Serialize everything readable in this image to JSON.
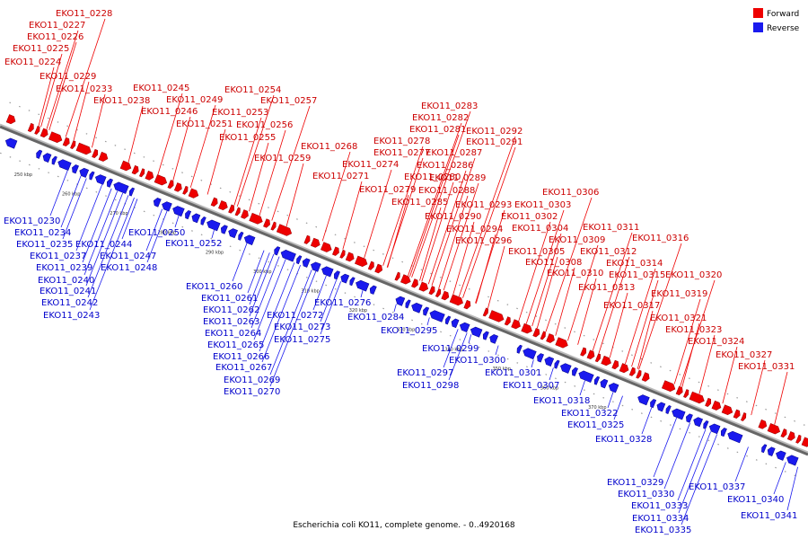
{
  "title": "Escherichia coli KO11, complete genome. - 0..4920168",
  "colors": {
    "forward": "#ee0000",
    "reverse": "#1a1aee",
    "backbone": "#666666"
  },
  "legend": [
    {
      "label": "Forward",
      "strand": "forward"
    },
    {
      "label": "Reverse",
      "strand": "reverse"
    }
  ],
  "ticks": [
    "250 kbp",
    "260 kbp",
    "270 kbp",
    "280 kbp",
    "290 kbp",
    "300 kbp",
    "310 kbp",
    "320 kbp",
    "330 kbp",
    "340 kbp",
    "350 kbp",
    "360 kbp",
    "370 kbp"
  ],
  "forward_labels": [
    "EKO11_0228",
    "EKO11_0227",
    "EKO11_0226",
    "EKO11_0225",
    "EKO11_0224",
    "EKO11_0229",
    "EKO11_0233",
    "EKO11_0238",
    "EKO11_0245",
    "EKO11_0249",
    "EKO11_0246",
    "EKO11_0254",
    "EKO11_0257",
    "EKO11_0253",
    "EKO11_0251",
    "EKO11_0256",
    "EKO11_0255",
    "EKO11_0268",
    "EKO11_0259",
    "EKO11_0271",
    "EKO11_0283",
    "EKO11_0282",
    "EKO11_0281",
    "EKO11_0278",
    "EKO11_0277",
    "EKO11_0274",
    "EKO11_0280",
    "EKO11_0279",
    "EKO11_0285",
    "EKO11_0292",
    "EKO11_0291",
    "EKO11_0287",
    "EKO11_0286",
    "EKO11_0289",
    "EKO11_0288",
    "EKO11_0293",
    "EKO11_0290",
    "EKO11_0294",
    "EKO11_0296",
    "EKO11_0306",
    "EKO11_0303",
    "EKO11_0302",
    "EKO11_0304",
    "EKO11_0311",
    "EKO11_0309",
    "EKO11_0316",
    "EKO11_0305",
    "EKO11_0312",
    "EKO11_0308",
    "EKO11_0314",
    "EKO11_0310",
    "EKO11_0315",
    "EKO11_0320",
    "EKO11_0313",
    "EKO11_0319",
    "EKO11_0317",
    "EKO11_0321",
    "EKO11_0323",
    "EKO11_0324",
    "EKO11_0327",
    "EKO11_0331"
  ],
  "reverse_labels": [
    "EKO11_0230",
    "EKO11_0234",
    "EKO11_0235",
    "EKO11_0244",
    "EKO11_0250",
    "EKO11_0237",
    "EKO11_0247",
    "EKO11_0252",
    "EKO11_0239",
    "EKO11_0248",
    "EKO11_0240",
    "EKO11_0241",
    "EKO11_0242",
    "EKO11_0243",
    "EKO11_0260",
    "EKO11_0261",
    "EKO11_0262",
    "EKO11_0263",
    "EKO11_0276",
    "EKO11_0272",
    "EKO11_0284",
    "EKO11_0264",
    "EKO11_0273",
    "EKO11_0265",
    "EKO11_0275",
    "EKO11_0295",
    "EKO11_0266",
    "EKO11_0267",
    "EKO11_0269",
    "EKO11_0270",
    "EKO11_0299",
    "EKO11_0300",
    "EKO11_0297",
    "EKO11_0301",
    "EKO11_0298",
    "EKO11_0307",
    "EKO11_0318",
    "EKO11_0322",
    "EKO11_0325",
    "EKO11_0328",
    "EKO11_0329",
    "EKO11_0330",
    "EKO11_0333",
    "EKO11_0334",
    "EKO11_0335",
    "EKO11_0337",
    "EKO11_0340",
    "EKO11_0341"
  ]
}
